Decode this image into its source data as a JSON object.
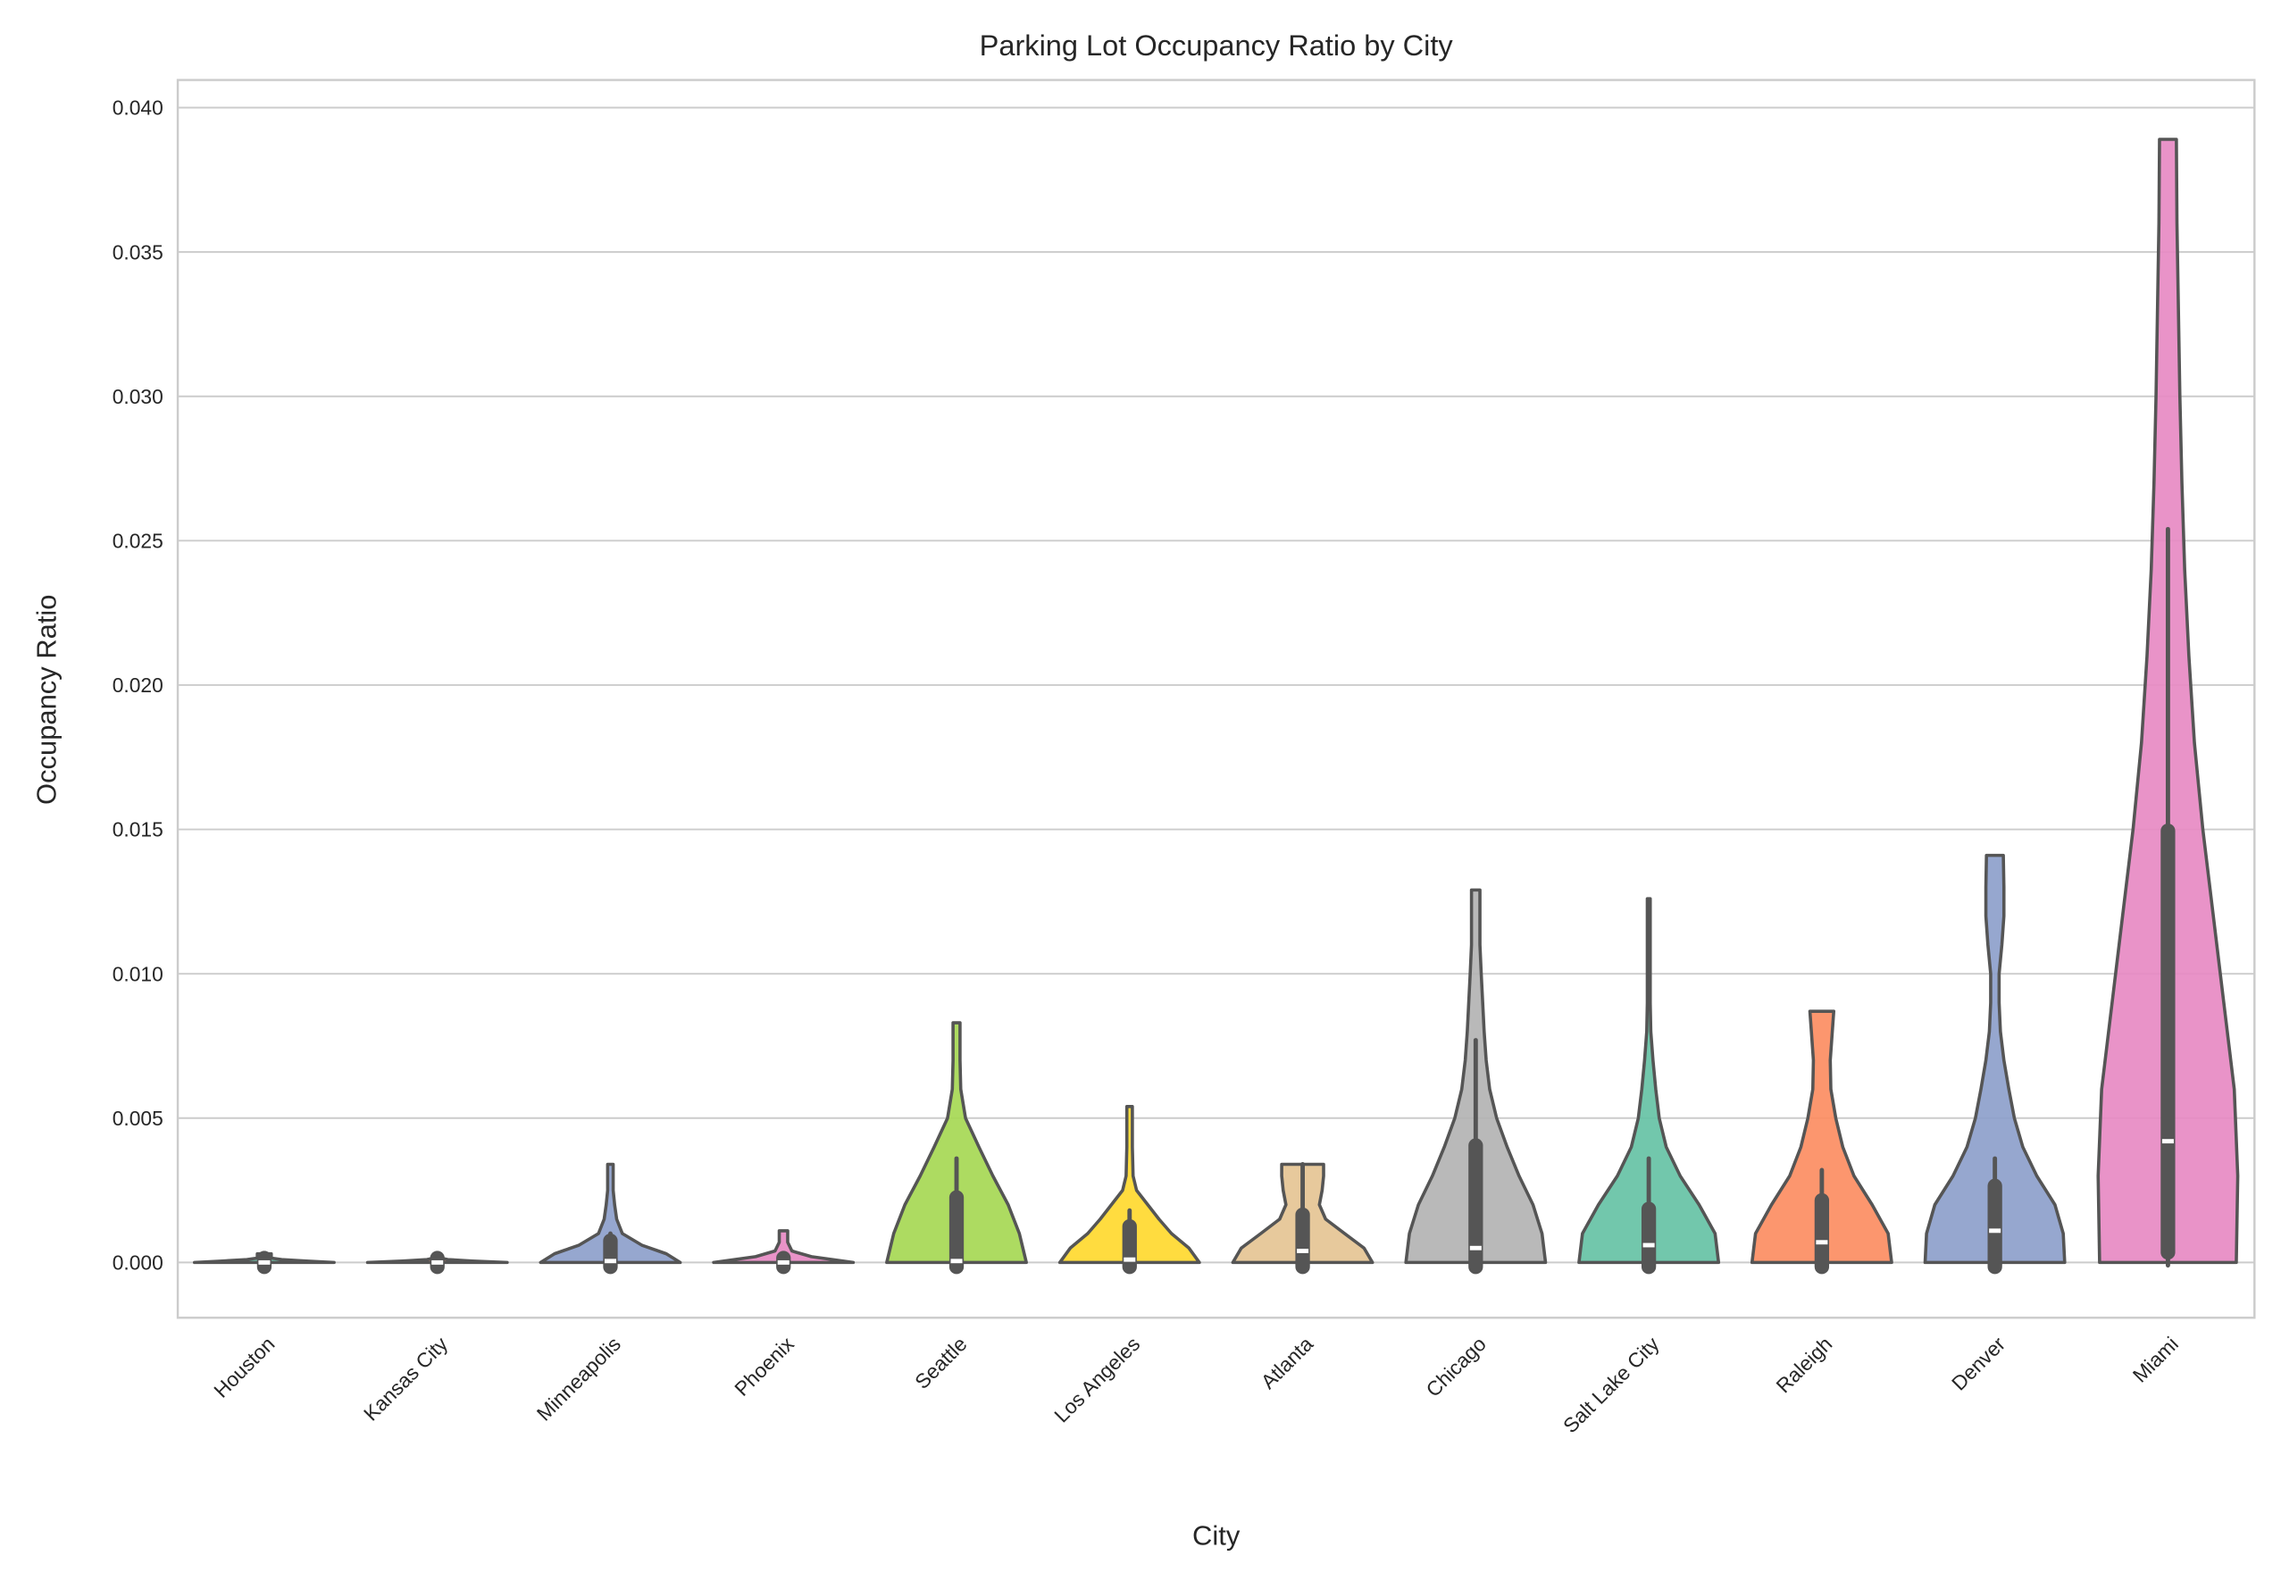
{
  "chart_data": {
    "type": "violin",
    "title": "Parking Lot Occupancy Ratio by City",
    "xlabel": "City",
    "ylabel": "Occupancy Ratio",
    "ylim": [
      -0.0019,
      0.0411
    ],
    "yticks": [
      "0.000",
      "0.005",
      "0.010",
      "0.015",
      "0.020",
      "0.025",
      "0.030",
      "0.035",
      "0.040"
    ],
    "ytick_values": [
      0,
      0.005,
      0.01,
      0.015,
      0.02,
      0.025,
      0.03,
      0.035,
      0.04
    ],
    "grid": "horizontal",
    "categories": [
      "Houston",
      "Kansas City",
      "Minneapolis",
      "Phoenix",
      "Seattle",
      "Los Angeles",
      "Atlanta",
      "Chicago",
      "Salt Lake City",
      "Raleigh",
      "Denver",
      "Miami"
    ],
    "colors": [
      "#66c2a5",
      "#fc8d62",
      "#8da0cb",
      "#e78ac3",
      "#a6d854",
      "#ffd92f",
      "#e5c494",
      "#b3b3b3",
      "#66c2a5",
      "#fc8d62",
      "#8da0cb",
      "#e78ac3"
    ],
    "series": [
      {
        "category": "Houston",
        "max": 0.0003,
        "median": 0.0,
        "q1": 0.0,
        "q3": 0.0,
        "whisker_high": 0.0001,
        "density": [
          [
            0,
            1
          ],
          [
            5e-05,
            0.6
          ],
          [
            0.0001,
            0.25
          ],
          [
            0.00015,
            0.1
          ],
          [
            0.0003,
            0.1
          ]
        ]
      },
      {
        "category": "Kansas City",
        "max": 0.0003,
        "median": 0.0,
        "q1": 0.0,
        "q3": 0.0,
        "whisker_high": 0.0001,
        "density": [
          [
            0,
            1
          ],
          [
            5e-05,
            0.5
          ],
          [
            0.0001,
            0.15
          ],
          [
            0.00015,
            0.05
          ],
          [
            0.0003,
            0.05
          ]
        ]
      },
      {
        "category": "Minneapolis",
        "max": 0.0034,
        "median": 5e-05,
        "q1": 0.0,
        "q3": 0.0006,
        "whisker_high": 0.001,
        "density": [
          [
            0,
            1
          ],
          [
            0.0003,
            0.8
          ],
          [
            0.0006,
            0.45
          ],
          [
            0.001,
            0.17
          ],
          [
            0.0015,
            0.09
          ],
          [
            0.002,
            0.06
          ],
          [
            0.0025,
            0.04
          ],
          [
            0.003,
            0.04
          ],
          [
            0.0034,
            0.04
          ]
        ]
      },
      {
        "category": "Phoenix",
        "max": 0.0011,
        "median": 0.0,
        "q1": 0.0,
        "q3": 0.0,
        "whisker_high": 0.0001,
        "density": [
          [
            0,
            1
          ],
          [
            0.0001,
            0.7
          ],
          [
            0.0002,
            0.4
          ],
          [
            0.0004,
            0.12
          ],
          [
            0.0007,
            0.06
          ],
          [
            0.0011,
            0.06
          ]
        ]
      },
      {
        "category": "Seattle",
        "max": 0.0083,
        "median": 5e-05,
        "q1": 0.0,
        "q3": 0.0021,
        "whisker_high": 0.0036,
        "density": [
          [
            0,
            1
          ],
          [
            0.001,
            0.9
          ],
          [
            0.002,
            0.74
          ],
          [
            0.003,
            0.52
          ],
          [
            0.004,
            0.32
          ],
          [
            0.005,
            0.13
          ],
          [
            0.006,
            0.06
          ],
          [
            0.007,
            0.05
          ],
          [
            0.0083,
            0.05
          ]
        ]
      },
      {
        "category": "Los Angeles",
        "max": 0.0054,
        "median": 0.0001,
        "q1": 0.0,
        "q3": 0.0011,
        "whisker_high": 0.0018,
        "density": [
          [
            0,
            1
          ],
          [
            0.0005,
            0.85
          ],
          [
            0.001,
            0.6
          ],
          [
            0.0015,
            0.42
          ],
          [
            0.002,
            0.26
          ],
          [
            0.0025,
            0.1
          ],
          [
            0.003,
            0.05
          ],
          [
            0.004,
            0.04
          ],
          [
            0.0054,
            0.04
          ]
        ]
      },
      {
        "category": "Atlanta",
        "max": 0.0034,
        "median": 0.0004,
        "q1": 0.0,
        "q3": 0.0015,
        "whisker_high": 0.0034,
        "density": [
          [
            0,
            1
          ],
          [
            0.0005,
            0.88
          ],
          [
            0.001,
            0.6
          ],
          [
            0.0015,
            0.33
          ],
          [
            0.002,
            0.24
          ],
          [
            0.0025,
            0.28
          ],
          [
            0.003,
            0.3
          ],
          [
            0.0034,
            0.3
          ]
        ]
      },
      {
        "category": "Chicago",
        "max": 0.0129,
        "median": 0.0005,
        "q1": 0.0,
        "q3": 0.0039,
        "whisker_high": 0.0077,
        "density": [
          [
            0,
            1
          ],
          [
            0.001,
            0.95
          ],
          [
            0.002,
            0.82
          ],
          [
            0.003,
            0.62
          ],
          [
            0.004,
            0.45
          ],
          [
            0.005,
            0.3
          ],
          [
            0.006,
            0.2
          ],
          [
            0.007,
            0.15
          ],
          [
            0.008,
            0.12
          ],
          [
            0.009,
            0.1
          ],
          [
            0.01,
            0.08
          ],
          [
            0.011,
            0.06
          ],
          [
            0.012,
            0.06
          ],
          [
            0.0129,
            0.06
          ]
        ]
      },
      {
        "category": "Salt Lake City",
        "max": 0.0126,
        "median": 0.0006,
        "q1": 0.0,
        "q3": 0.0017,
        "whisker_high": 0.0036,
        "density": [
          [
            0,
            1
          ],
          [
            0.001,
            0.95
          ],
          [
            0.002,
            0.72
          ],
          [
            0.003,
            0.45
          ],
          [
            0.004,
            0.25
          ],
          [
            0.005,
            0.15
          ],
          [
            0.006,
            0.1
          ],
          [
            0.007,
            0.06
          ],
          [
            0.008,
            0.03
          ],
          [
            0.009,
            0.02
          ],
          [
            0.012,
            0.02
          ],
          [
            0.0126,
            0.02
          ]
        ]
      },
      {
        "category": "Raleigh",
        "max": 0.0087,
        "median": 0.0007,
        "q1": 0.0,
        "q3": 0.002,
        "whisker_high": 0.0032,
        "density": [
          [
            0,
            1
          ],
          [
            0.001,
            0.95
          ],
          [
            0.002,
            0.72
          ],
          [
            0.003,
            0.46
          ],
          [
            0.004,
            0.3
          ],
          [
            0.005,
            0.2
          ],
          [
            0.006,
            0.13
          ],
          [
            0.007,
            0.12
          ],
          [
            0.008,
            0.15
          ],
          [
            0.0087,
            0.17
          ]
        ]
      },
      {
        "category": "Denver",
        "max": 0.0141,
        "median": 0.0011,
        "q1": 0.0,
        "q3": 0.0025,
        "whisker_high": 0.0036,
        "density": [
          [
            0,
            1
          ],
          [
            0.001,
            0.98
          ],
          [
            0.002,
            0.86
          ],
          [
            0.003,
            0.6
          ],
          [
            0.004,
            0.4
          ],
          [
            0.005,
            0.28
          ],
          [
            0.006,
            0.2
          ],
          [
            0.007,
            0.13
          ],
          [
            0.008,
            0.08
          ],
          [
            0.009,
            0.06
          ],
          [
            0.01,
            0.06
          ],
          [
            0.011,
            0.1
          ],
          [
            0.012,
            0.13
          ],
          [
            0.013,
            0.13
          ],
          [
            0.0141,
            0.12
          ]
        ]
      },
      {
        "category": "Miami",
        "max": 0.0389,
        "median": 0.0042,
        "q1": 0.0005,
        "q3": 0.0148,
        "whisker_high": 0.0254,
        "density": [
          [
            0,
            0.98
          ],
          [
            0.003,
            1
          ],
          [
            0.006,
            0.95
          ],
          [
            0.009,
            0.8
          ],
          [
            0.012,
            0.65
          ],
          [
            0.015,
            0.5
          ],
          [
            0.018,
            0.38
          ],
          [
            0.021,
            0.3
          ],
          [
            0.024,
            0.24
          ],
          [
            0.027,
            0.2
          ],
          [
            0.03,
            0.17
          ],
          [
            0.033,
            0.15
          ],
          [
            0.036,
            0.13
          ],
          [
            0.0389,
            0.12
          ]
        ]
      }
    ]
  }
}
